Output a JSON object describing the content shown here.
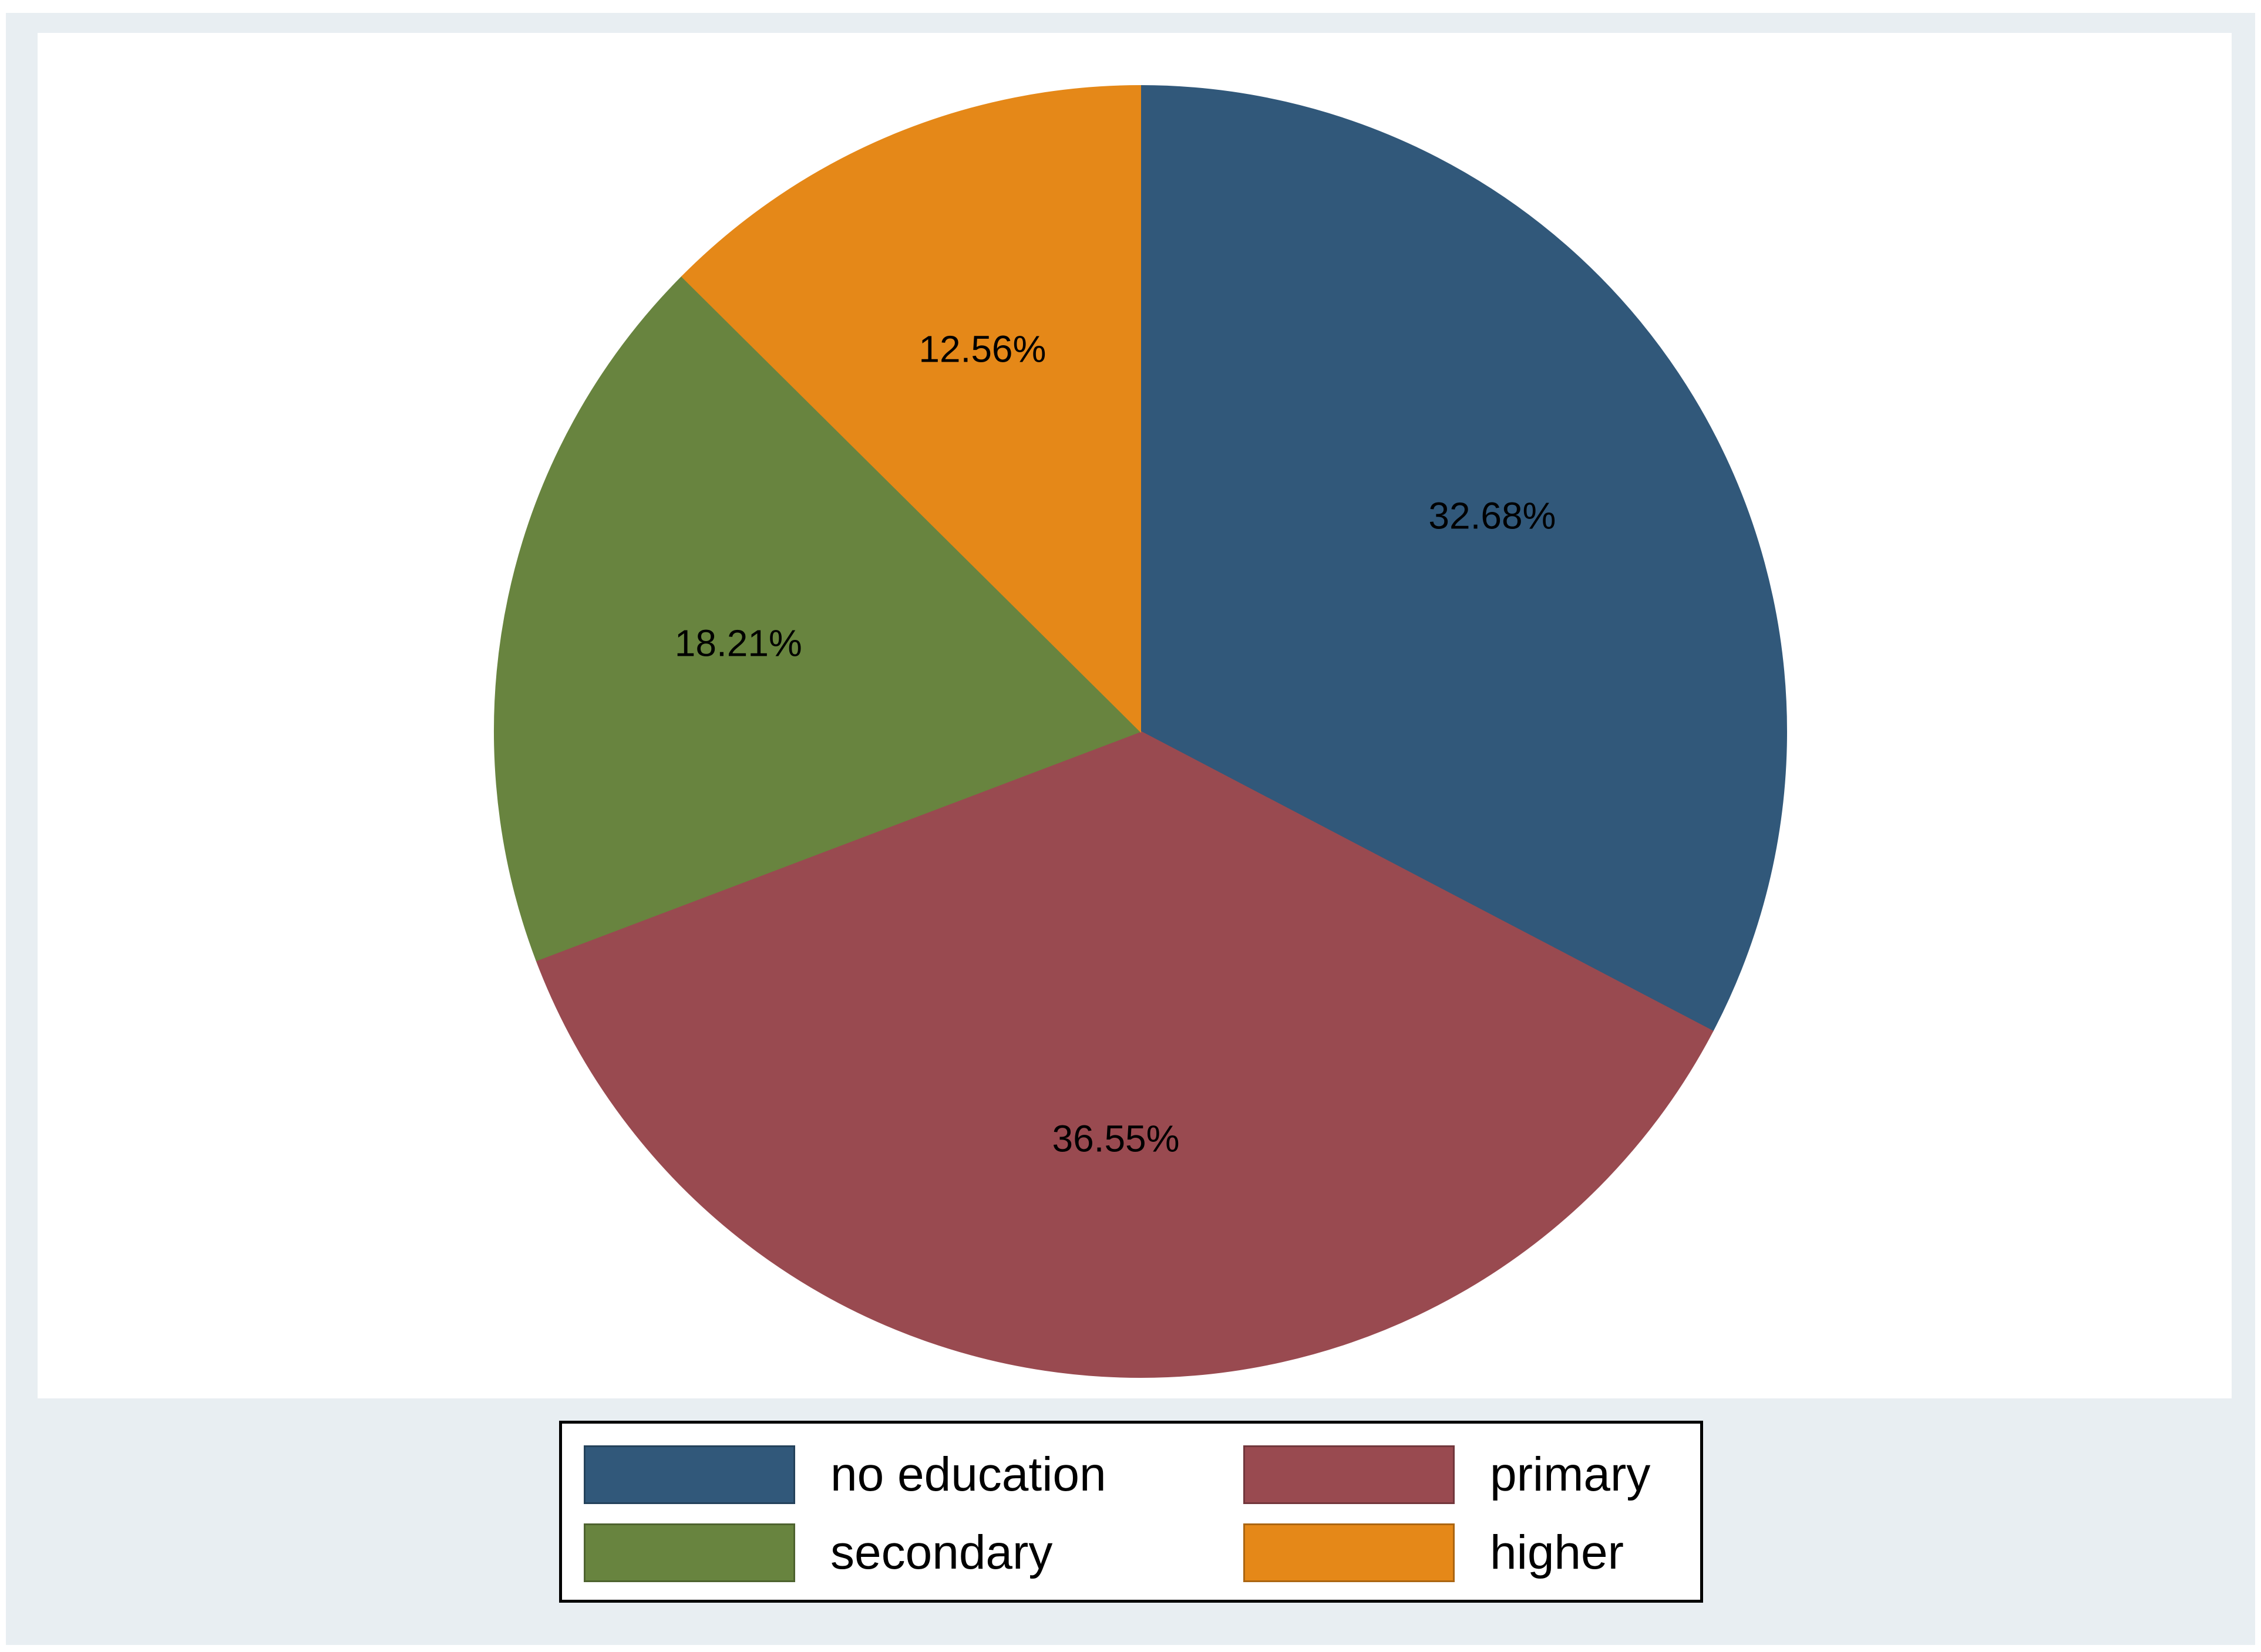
{
  "chart_data": {
    "type": "pie",
    "title": "",
    "categories": [
      "no education",
      "primary",
      "secondary",
      "higher"
    ],
    "values": [
      32.68,
      36.55,
      18.21,
      12.56
    ],
    "labels": [
      "32.68%",
      "36.55%",
      "18.21%",
      "12.56%"
    ],
    "colors": [
      "#31587a",
      "#994a50",
      "#68843f",
      "#e58818"
    ],
    "start_angle_deg": 0,
    "direction": "clockwise",
    "legend_position": "bottom",
    "legend_columns": 2
  },
  "legend": {
    "items": [
      {
        "label": "no education",
        "color": "#31587a"
      },
      {
        "label": "primary",
        "color": "#994a50"
      },
      {
        "label": "secondary",
        "color": "#68843f"
      },
      {
        "label": "higher",
        "color": "#e58818"
      }
    ]
  },
  "colors": {
    "frame_background": "#e8eef2",
    "plot_background": "#ffffff"
  }
}
